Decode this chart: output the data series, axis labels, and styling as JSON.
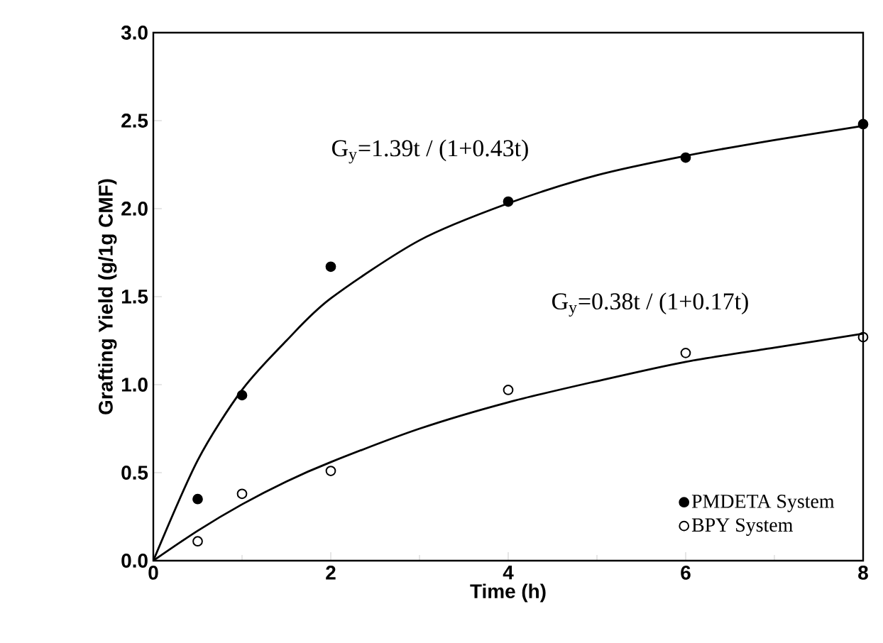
{
  "chart_data": {
    "type": "scatter",
    "xlabel": "Time (h)",
    "ylabel": "Grafting Yield (g/1g CMF)",
    "x": [
      0.5,
      1,
      2,
      4,
      6,
      8
    ],
    "series": [
      {
        "name": "PMDETA System",
        "color": "#000000",
        "marker": "circle",
        "values": [
          0.35,
          0.94,
          1.67,
          2.04,
          2.29,
          2.48
        ]
      },
      {
        "name": "BPY System",
        "color": "#000000",
        "marker": "circle",
        "values": [
          0.11,
          0.38,
          0.51,
          0.97,
          1.18,
          1.27
        ]
      },
      {
        "type": "line",
        "color": "#000000",
        "x": [
          0,
          0.5,
          1,
          1.5,
          2,
          3,
          4,
          5,
          6,
          7,
          8
        ],
        "values": [
          0,
          0.57,
          0.97,
          1.25,
          1.49,
          1.82,
          2.03,
          2.19,
          2.3,
          2.39,
          2.47
        ]
      },
      {
        "type": "line",
        "color": "#000000",
        "x": [
          0,
          0.5,
          1,
          1.5,
          2,
          3,
          4,
          5,
          6,
          7,
          8
        ],
        "values": [
          0,
          0.17,
          0.32,
          0.45,
          0.56,
          0.75,
          0.9,
          1.02,
          1.13,
          1.21,
          1.29
        ]
      }
    ],
    "annotations": [
      "G$_{y}$=1.39t / (1+0.43t)",
      "G$_{y}$=0.38t / (1+0.17t)"
    ],
    "xlim": [
      0,
      8
    ],
    "xticks": [
      0,
      2,
      4,
      6,
      8
    ],
    "ylim": [
      0,
      3
    ],
    "yticks": [
      {
        "value": 0,
        "label": "0.0"
      },
      {
        "value": 0.5,
        "label": "0.5"
      },
      {
        "value": 1,
        "label": "1.0"
      },
      {
        "value": 1.5,
        "label": "1.5"
      },
      {
        "value": 2,
        "label": "2.0"
      },
      {
        "value": 2.5,
        "label": "2.5"
      },
      {
        "value": 3,
        "label": "3.0"
      }
    ],
    "line_style": "solid",
    "legend": "bottom right",
    "grid": false
  }
}
